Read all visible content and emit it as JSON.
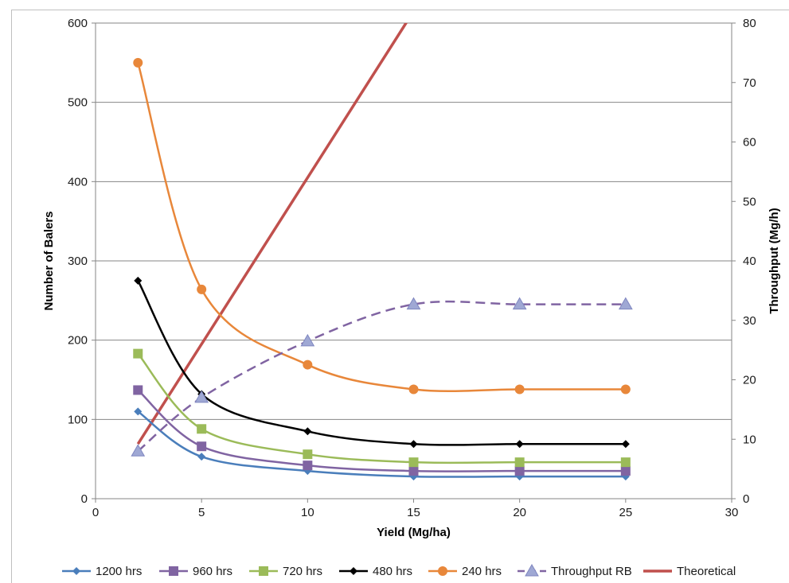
{
  "chart_data": {
    "type": "line",
    "xlabel": "Yield (Mg/ha)",
    "ylabel": "Number of Balers",
    "y2label": "Throughput (Mg/h)",
    "xlim": [
      0,
      30
    ],
    "ylim": [
      0,
      600
    ],
    "y2lim": [
      0,
      80
    ],
    "xticks": [
      0,
      5,
      10,
      15,
      20,
      25,
      30
    ],
    "yticks": [
      0,
      100,
      200,
      300,
      400,
      500,
      600
    ],
    "y2ticks": [
      0,
      10,
      20,
      30,
      40,
      50,
      60,
      70,
      80
    ],
    "grid": "horizontal",
    "legend": "bottom",
    "series": [
      {
        "name": "1200 hrs",
        "axis": "left",
        "marker": "diamond",
        "color": "#4a7ebb",
        "style": "solid",
        "x": [
          2,
          5,
          10,
          15,
          20,
          25
        ],
        "y": [
          110,
          53,
          35,
          28,
          28,
          28
        ]
      },
      {
        "name": "960 hrs",
        "axis": "left",
        "marker": "square",
        "color": "#8064a2",
        "style": "solid",
        "x": [
          2,
          5,
          10,
          15,
          20,
          25
        ],
        "y": [
          137,
          66,
          42,
          35,
          35,
          35
        ]
      },
      {
        "name": "720 hrs",
        "axis": "left",
        "marker": "square",
        "color": "#9bbb59",
        "style": "solid",
        "x": [
          2,
          5,
          10,
          15,
          20,
          25
        ],
        "y": [
          183,
          88,
          56,
          46,
          46,
          46
        ]
      },
      {
        "name": "480 hrs",
        "axis": "left",
        "marker": "diamond",
        "color": "#000000",
        "style": "solid",
        "x": [
          2,
          5,
          10,
          15,
          20,
          25
        ],
        "y": [
          275,
          132,
          85,
          69,
          69,
          69
        ]
      },
      {
        "name": "240 hrs",
        "axis": "left",
        "marker": "circle",
        "color": "#e8873a",
        "style": "solid",
        "x": [
          2,
          5,
          10,
          15,
          20,
          25
        ],
        "y": [
          550,
          264,
          169,
          138,
          138,
          138
        ]
      },
      {
        "name": "Throughput RB",
        "axis": "right",
        "marker": "triangle",
        "color": "#8064a2",
        "style": "dashed",
        "x": [
          2,
          5,
          10,
          15,
          20,
          25
        ],
        "y": [
          8,
          17,
          26.5,
          32.7,
          32.7,
          32.7
        ]
      },
      {
        "name": "Theoretical",
        "axis": "right",
        "marker": "none",
        "color": "#c0504d",
        "style": "solid",
        "x": [
          2,
          20
        ],
        "y": [
          9.2,
          110
        ]
      }
    ]
  }
}
